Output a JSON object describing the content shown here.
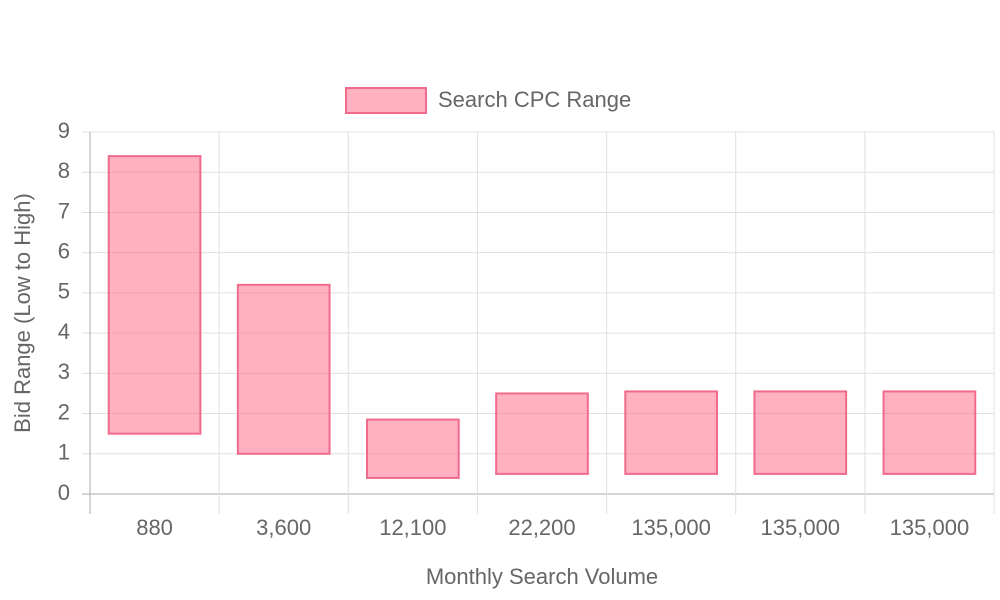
{
  "chart_data": {
    "type": "floating-bar",
    "legend": "top",
    "x_label": "Monthly Search Volume",
    "y_label": "Bid Range (Low to High)",
    "categories": [
      "880",
      "3,600",
      "12,100",
      "22,200",
      "135,000",
      "135,000",
      "135,000"
    ],
    "series": [
      {
        "name": "Search CPC Range",
        "color": "rgba(255,99,132,0.5)",
        "border_color": "#f06a8c",
        "values": [
          [
            1.5,
            8.4
          ],
          [
            1.0,
            5.2
          ],
          [
            0.4,
            1.85
          ],
          [
            0.5,
            2.5
          ],
          [
            0.5,
            2.55
          ],
          [
            0.5,
            2.55
          ],
          [
            0.5,
            2.55
          ]
        ]
      }
    ],
    "ylim": [
      0,
      9
    ],
    "yticks": [
      0,
      1,
      2,
      3,
      4,
      5,
      6,
      7,
      8,
      9
    ],
    "grid": true
  }
}
